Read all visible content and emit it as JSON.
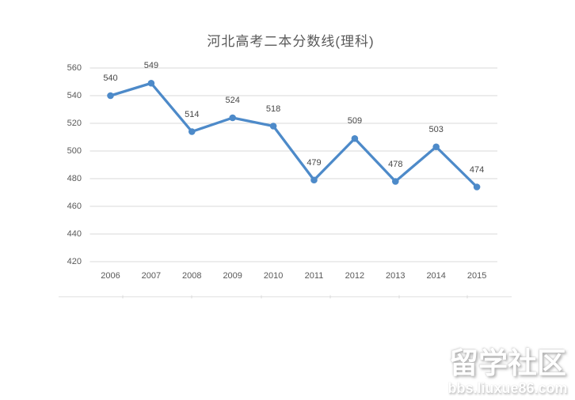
{
  "page": {
    "background_color": "#ffffff"
  },
  "chart_data": {
    "type": "line",
    "title": "河北高考二本分数线(理科)",
    "categories": [
      "2006",
      "2007",
      "2008",
      "2009",
      "2010",
      "2011",
      "2012",
      "2013",
      "2014",
      "2015"
    ],
    "values": [
      540,
      549,
      514,
      524,
      518,
      479,
      509,
      478,
      503,
      474
    ],
    "series": [
      {
        "name": "河北高考二本分数线(理科)",
        "values": [
          540,
          549,
          514,
          524,
          518,
          479,
          509,
          478,
          503,
          474
        ]
      }
    ],
    "xlabel": "",
    "ylabel": "",
    "ylim": [
      420,
      560
    ],
    "yticks": [
      420,
      440,
      460,
      480,
      500,
      520,
      540,
      560
    ],
    "grid": true,
    "legend": false,
    "line_color": "#4d8ac9",
    "marker_color": "#4d8ac9",
    "grid_color": "#d9d9d9",
    "axis_label_color": "#595959",
    "data_label_color": "#474747",
    "title_color": "#595959",
    "data_labels_shown": true
  },
  "watermark": {
    "line1": "留学社区",
    "line2": "bbs.liuxue86.com"
  }
}
